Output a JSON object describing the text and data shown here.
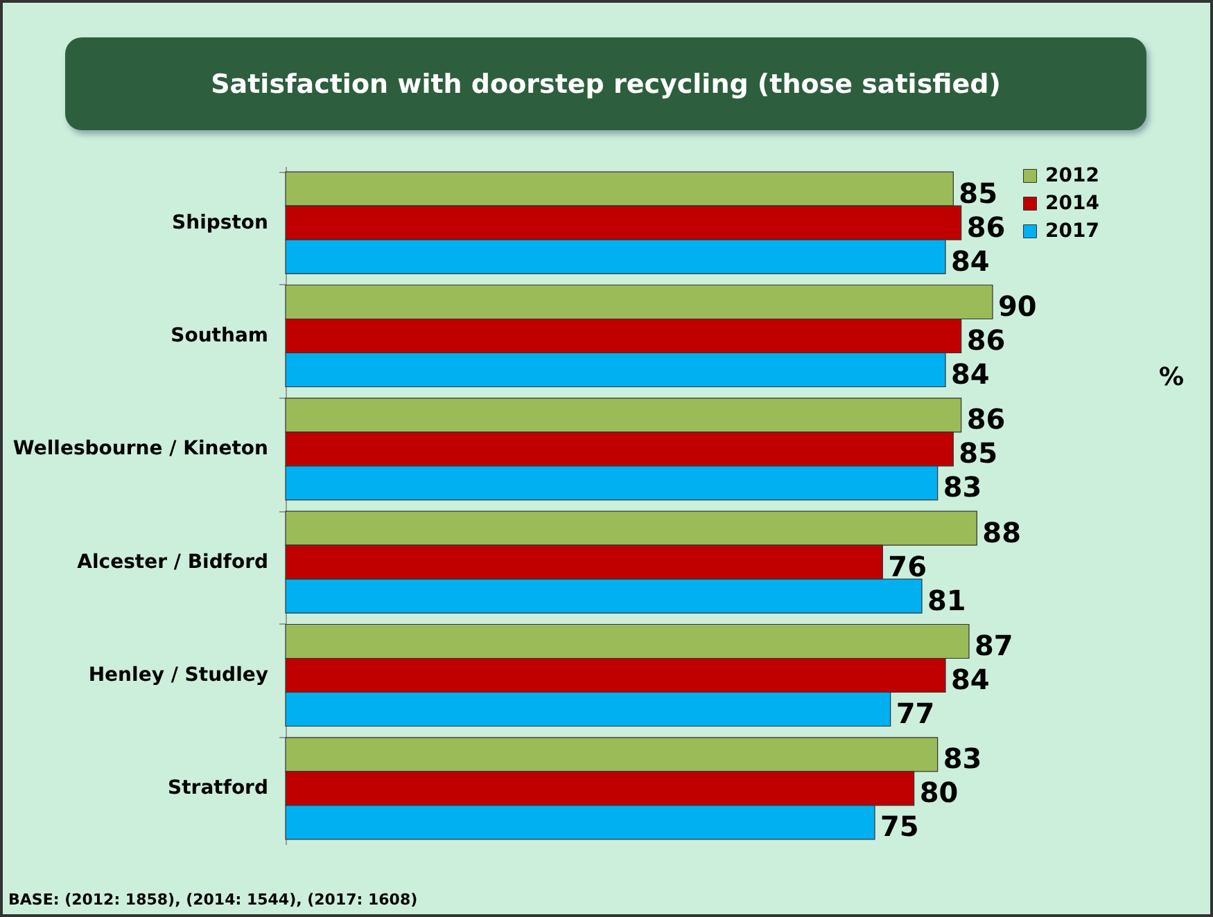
{
  "chart_data": {
    "type": "bar",
    "orientation": "horizontal",
    "title": "Satisfaction with doorstep recycling (those satisfied)",
    "categories": [
      "Shipston",
      "Southam",
      "Wellesbourne / Kineton",
      "Alcester / Bidford",
      "Henley / Studley",
      "Stratford"
    ],
    "series": [
      {
        "name": "2012",
        "color": "#9bbb59",
        "values": [
          85,
          90,
          86,
          88,
          87,
          83
        ]
      },
      {
        "name": "2014",
        "color": "#c00000",
        "values": [
          86,
          86,
          85,
          76,
          84,
          80
        ]
      },
      {
        "name": "2017",
        "color": "#00b0f0",
        "values": [
          84,
          84,
          83,
          81,
          77,
          75
        ]
      }
    ],
    "data_labels": true,
    "legend": "right",
    "tick_labels": "y",
    "annotations": [
      "%",
      "BASE: (2012: 1858), (2014: 1544), (2017: 1608)"
    ]
  }
}
